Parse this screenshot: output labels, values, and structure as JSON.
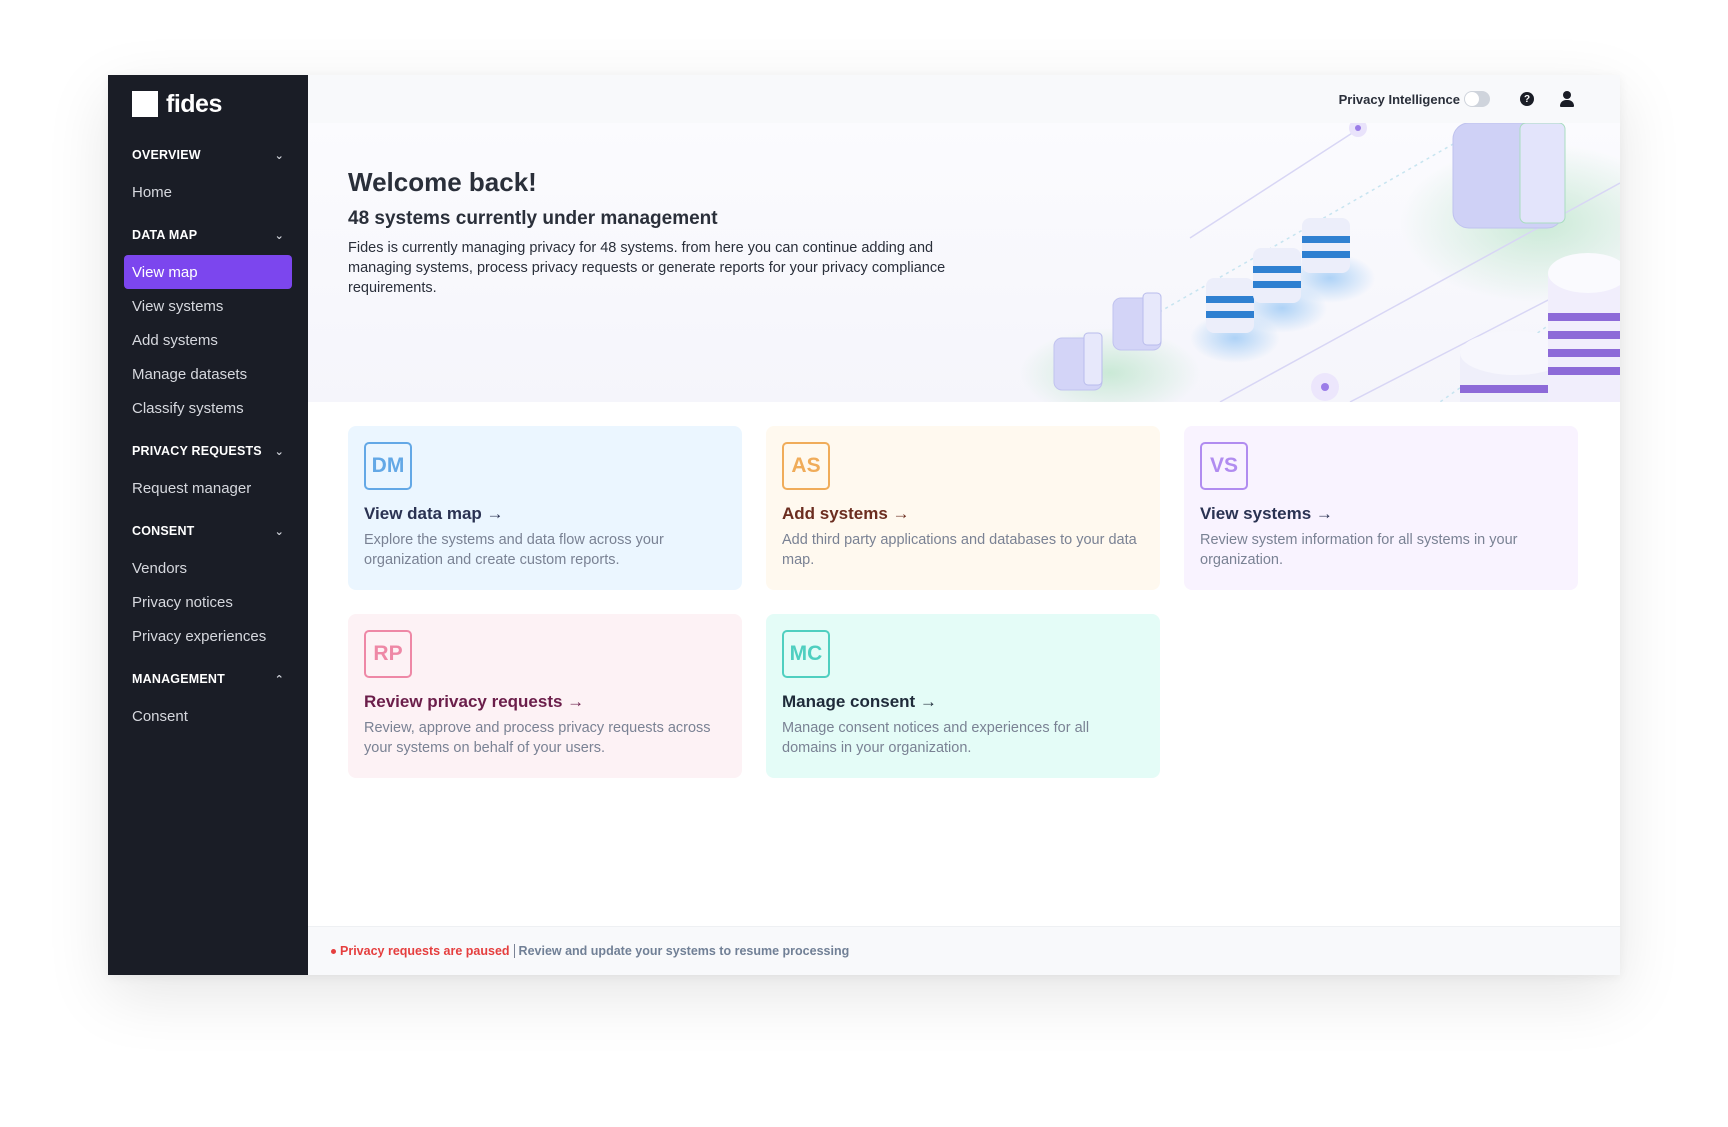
{
  "brand": {
    "name": "fides"
  },
  "sidebar": {
    "sections": [
      {
        "label": "OVERVIEW",
        "expanded": true,
        "items": [
          {
            "label": "Home"
          }
        ]
      },
      {
        "label": "DATA MAP",
        "expanded": true,
        "items": [
          {
            "label": "View map",
            "active": true
          },
          {
            "label": "View systems"
          },
          {
            "label": "Add systems"
          },
          {
            "label": "Manage datasets"
          },
          {
            "label": "Classify systems"
          }
        ]
      },
      {
        "label": "PRIVACY REQUESTS",
        "expanded": true,
        "items": [
          {
            "label": "Request manager"
          }
        ]
      },
      {
        "label": "CONSENT",
        "expanded": true,
        "items": [
          {
            "label": "Vendors"
          },
          {
            "label": "Privacy notices"
          },
          {
            "label": "Privacy experiences"
          }
        ]
      },
      {
        "label": "MANAGEMENT",
        "expanded": false,
        "items": [
          {
            "label": "Consent"
          }
        ]
      }
    ]
  },
  "topbar": {
    "privacy_intelligence_label": "Privacy Intelligence",
    "privacy_intelligence_on": false,
    "help_icon": "question-circle-icon",
    "user_icon": "user-icon"
  },
  "hero": {
    "title": "Welcome back!",
    "subtitle": "48 systems currently under management",
    "body": "Fides is currently managing privacy for 48 systems. from here you can continue adding and managing systems, process privacy requests or generate reports for your privacy compliance requirements."
  },
  "cards": [
    {
      "badge": "DM",
      "title": "View data map →",
      "desc": "Explore the systems and  data flow across your organization and create custom reports.",
      "bg": "#ebf6ff",
      "accent": "#63a8e6",
      "title_color": "#2a3252"
    },
    {
      "badge": "AS",
      "title": "Add systems →",
      "desc": "Add third party applications and databases to your data map.",
      "bg": "#fff9ef",
      "accent": "#f0ac5a",
      "title_color": "#6b2d1f"
    },
    {
      "badge": "VS",
      "title": "View systems →",
      "desc": "Review system information for all systems in your organization.",
      "bg": "#f9f3ff",
      "accent": "#b18cf0",
      "title_color": "#2a3252"
    },
    {
      "badge": "RP",
      "title": "Review privacy requests →",
      "desc": "Review, approve and process privacy requests across your systems on behalf of your users.",
      "bg": "#fdf2f5",
      "accent": "#ee88a6",
      "title_color": "#6b1e4a"
    },
    {
      "badge": "MC",
      "title": "Manage consent →",
      "desc": "Manage consent notices and experiences for all domains in your organization.",
      "bg": "#e4fcf7",
      "accent": "#4fcfc0",
      "title_color": "#1f2b3a"
    }
  ],
  "footer": {
    "status": "Privacy requests are paused",
    "hint": "Review and update your systems to resume processing",
    "status_color": "#e53e3e"
  }
}
